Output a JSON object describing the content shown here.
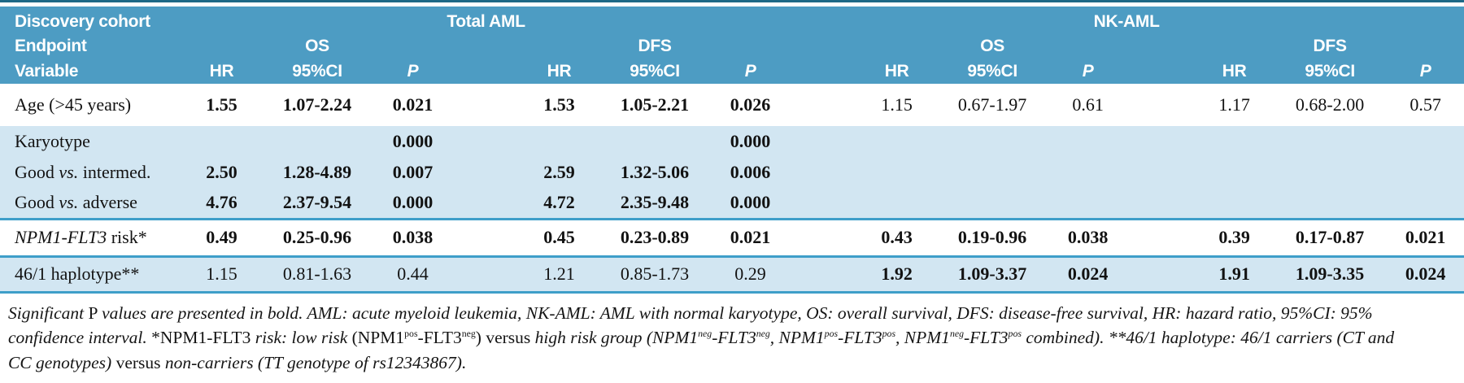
{
  "colors": {
    "header_bg": "#4d9cc3",
    "header_text": "#ffffff",
    "shade_bg": "#d2e6f2",
    "line": "#3e9ec9",
    "top_rule": "#1d6886"
  },
  "table": {
    "header": {
      "left_lines": [
        "Discovery cohort",
        "Endpoint",
        "Variable"
      ],
      "cohorts": [
        "Total AML",
        "NK-AML"
      ],
      "endpoints": [
        "OS",
        "DFS",
        "OS",
        "DFS"
      ],
      "stat_cols": [
        "HR",
        "95%CI",
        "P"
      ]
    },
    "rows": [
      {
        "label": [
          {
            "t": "Age (>45 years)"
          }
        ],
        "shade": false,
        "size": "tall",
        "groups": [
          {
            "hr": "1.55",
            "ci": "1.07-2.24",
            "p": "0.021",
            "bold": true
          },
          {
            "hr": "1.53",
            "ci": "1.05-2.21",
            "p": "0.026",
            "bold": true
          },
          {
            "hr": "1.15",
            "ci": "0.67-1.97",
            "p": "0.61",
            "bold": false
          },
          {
            "hr": "1.17",
            "ci": "0.68-2.00",
            "p": "0.57",
            "bold": false
          }
        ]
      },
      {
        "label": [
          {
            "t": "Karyotype"
          }
        ],
        "shade": true,
        "groups": [
          {
            "p": "0.000",
            "bold": true
          },
          {
            "p": "0.000",
            "bold": true
          },
          {},
          {}
        ]
      },
      {
        "label": [
          {
            "t": "Good "
          },
          {
            "t": "vs.",
            "i": true
          },
          {
            "t": " intermed."
          }
        ],
        "shade": true,
        "groups": [
          {
            "hr": "2.50",
            "ci": "1.28-4.89",
            "p": "0.007",
            "bold": true
          },
          {
            "hr": "2.59",
            "ci": "1.32-5.06",
            "p": "0.006",
            "bold": true
          },
          {},
          {}
        ]
      },
      {
        "label": [
          {
            "t": "Good "
          },
          {
            "t": "vs.",
            "i": true
          },
          {
            "t": " adverse"
          }
        ],
        "shade": true,
        "groups": [
          {
            "hr": "4.76",
            "ci": "2.37-9.54",
            "p": "0.000",
            "bold": true
          },
          {
            "hr": "4.72",
            "ci": "2.35-9.48",
            "p": "0.000",
            "bold": true
          },
          {},
          {}
        ]
      },
      {
        "label": [
          {
            "t": "NPM1-FLT3",
            "i": true
          },
          {
            "t": " risk*"
          }
        ],
        "shade": false,
        "size": "mid",
        "sep_above": true,
        "sep_below": true,
        "groups": [
          {
            "hr": "0.49",
            "ci": "0.25-0.96",
            "p": "0.038",
            "bold": true
          },
          {
            "hr": "0.45",
            "ci": "0.23-0.89",
            "p": "0.021",
            "bold": true
          },
          {
            "hr": "0.43",
            "ci": "0.19-0.96",
            "p": "0.038",
            "bold": true
          },
          {
            "hr": "0.39",
            "ci": "0.17-0.87",
            "p": "0.021",
            "bold": true
          }
        ]
      },
      {
        "label": [
          {
            "t": "46/1 haplotype**"
          }
        ],
        "shade": true,
        "size": "low",
        "sep_below": true,
        "groups": [
          {
            "hr": "1.15",
            "ci": "0.81-1.63",
            "p": "0.44",
            "bold": false
          },
          {
            "hr": "1.21",
            "ci": "0.85-1.73",
            "p": "0.29",
            "bold": false
          },
          {
            "hr": "1.92",
            "ci": "1.09-3.37",
            "p": "0.024",
            "bold": true
          },
          {
            "hr": "1.91",
            "ci": "1.09-3.35",
            "p": "0.024",
            "bold": true
          }
        ]
      }
    ]
  },
  "footnote": {
    "lines": [
      [
        {
          "t": "Significant ",
          "style": "i"
        },
        {
          "t": "P ",
          "style": "r"
        },
        {
          "t": "values are presented in bold. AML: acute myeloid leukemia, NK-AML: AML with normal karyotype, OS: overall survival, DFS: disease-free survival, HR: hazard ratio, 95%CI: 95%",
          "style": "i"
        }
      ],
      [
        {
          "t": "confidence interval. ",
          "style": "i"
        },
        {
          "t": "*NPM1-FLT3 ",
          "style": "r"
        },
        {
          "t": "risk: low risk ",
          "style": "i"
        },
        {
          "t": "(NPM1",
          "style": "r"
        },
        {
          "t": "pos",
          "style": "r",
          "sup": true
        },
        {
          "t": "-FLT3",
          "style": "r"
        },
        {
          "t": "neg",
          "style": "r",
          "sup": true
        },
        {
          "t": ") ",
          "style": "r"
        },
        {
          "t": "versus ",
          "style": "r"
        },
        {
          "t": "high risk group (NPM1",
          "style": "i"
        },
        {
          "t": "neg",
          "style": "i",
          "sup": true
        },
        {
          "t": "-FLT3",
          "style": "i"
        },
        {
          "t": "neg",
          "style": "i",
          "sup": true
        },
        {
          "t": ", NPM1",
          "style": "i"
        },
        {
          "t": "pos",
          "style": "i",
          "sup": true
        },
        {
          "t": "-FLT3",
          "style": "i"
        },
        {
          "t": "pos",
          "style": "i",
          "sup": true
        },
        {
          "t": ", NPM1",
          "style": "i"
        },
        {
          "t": "neg",
          "style": "i",
          "sup": true
        },
        {
          "t": "-FLT3",
          "style": "i"
        },
        {
          "t": "pos",
          "style": "i",
          "sup": true
        },
        {
          "t": " combined). **46/1 haplotype: 46/1 carriers (CT and",
          "style": "i"
        }
      ],
      [
        {
          "t": "CC genotypes) ",
          "style": "i"
        },
        {
          "t": "versus ",
          "style": "r"
        },
        {
          "t": "non-carriers (TT genotype of rs12343867).",
          "style": "i"
        }
      ]
    ]
  }
}
